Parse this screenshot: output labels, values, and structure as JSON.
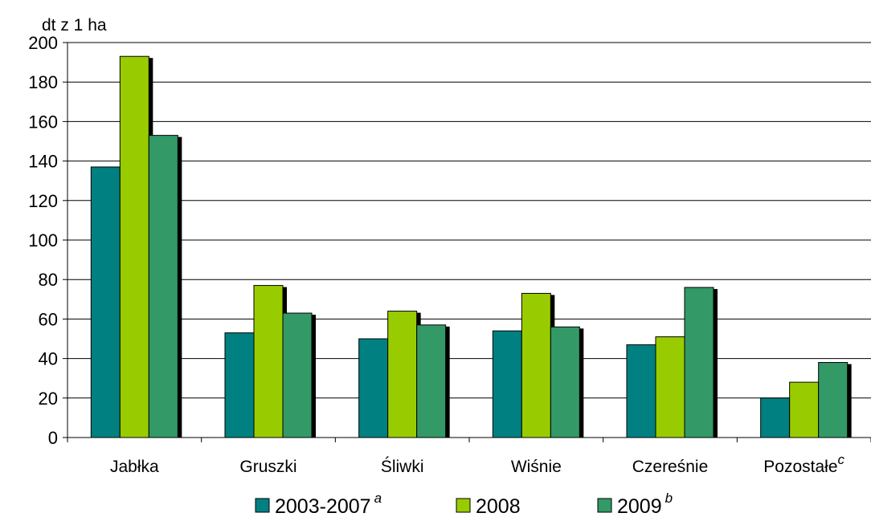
{
  "chart_data": {
    "type": "bar",
    "unit_label": "dt z 1 ha",
    "categories": [
      "Jabłka",
      "Gruszki",
      "Śliwki",
      "Wiśnie",
      "Czereśnie",
      "Pozostałe"
    ],
    "category_superscripts": [
      "",
      "",
      "",
      "",
      "",
      "c"
    ],
    "series": [
      {
        "name": "2003-2007",
        "superscript": "a",
        "color": "#008080",
        "values": [
          137,
          53,
          50,
          54,
          47,
          20
        ]
      },
      {
        "name": "2008",
        "superscript": "",
        "color": "#99cc00",
        "values": [
          193,
          77,
          64,
          73,
          51,
          28
        ]
      },
      {
        "name": "2009",
        "superscript": "b",
        "color": "#339966",
        "values": [
          153,
          63,
          57,
          56,
          76,
          38
        ]
      }
    ],
    "ylim": [
      0,
      200
    ],
    "yticks": [
      0,
      20,
      40,
      60,
      80,
      100,
      120,
      140,
      160,
      180,
      200
    ],
    "grid": true,
    "legend_position": "bottom"
  }
}
